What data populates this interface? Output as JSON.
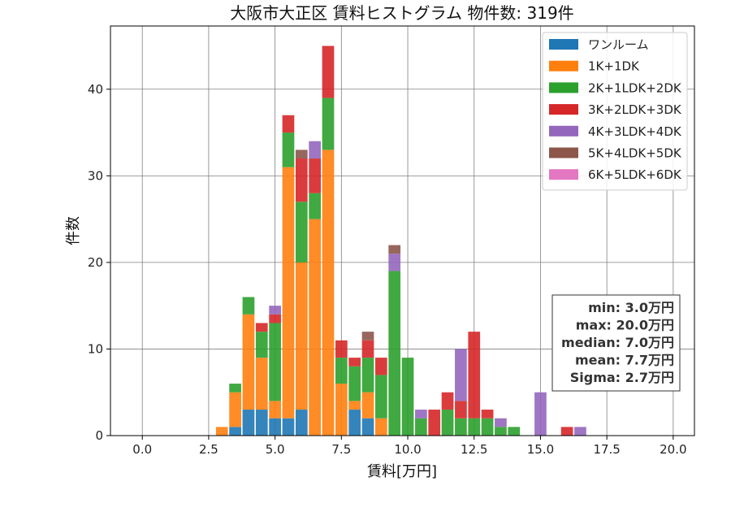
{
  "chart_data": {
    "type": "bar",
    "stacked": true,
    "title": "大阪市大正区 賃料ヒストグラム 物件数: 319件",
    "xlabel": "賃料[万円]",
    "ylabel": "件数",
    "xlim": [
      -1.2,
      20.8
    ],
    "ylim": [
      0,
      47.3
    ],
    "xticks": [
      "0.0",
      "2.5",
      "5.0",
      "7.5",
      "10.0",
      "12.5",
      "15.0",
      "17.5",
      "20.0"
    ],
    "yticks": [
      "0",
      "10",
      "20",
      "30",
      "40"
    ],
    "grid": true,
    "legend_position": "top-right",
    "bin_width": 0.5,
    "x": [
      3.0,
      3.5,
      4.0,
      4.5,
      5.0,
      5.5,
      6.0,
      6.5,
      7.0,
      7.5,
      8.0,
      8.5,
      9.0,
      9.5,
      10.0,
      10.5,
      11.0,
      11.5,
      12.0,
      12.5,
      13.0,
      13.5,
      14.0,
      14.5,
      15.0,
      15.5,
      16.0,
      16.5
    ],
    "series": [
      {
        "name": "ワンルーム",
        "color": "#1f77b4",
        "values": [
          0,
          1,
          3,
          3,
          2,
          2,
          3,
          0,
          0,
          0,
          3,
          2,
          0,
          0,
          0,
          0,
          0,
          0,
          0,
          0,
          0,
          0,
          0,
          0,
          0,
          0,
          0,
          0
        ]
      },
      {
        "name": "1K+1DK",
        "color": "#ff7f0e",
        "values": [
          1,
          4,
          11,
          6,
          2,
          29,
          17,
          25,
          33,
          6,
          1,
          3,
          2,
          0,
          0,
          0,
          0,
          0,
          0,
          0,
          0,
          0,
          0,
          0,
          0,
          0,
          0,
          0
        ]
      },
      {
        "name": "2K+1LDK+2DK",
        "color": "#2ca02c",
        "values": [
          0,
          1,
          2,
          3,
          9,
          4,
          7,
          3,
          6,
          3,
          4,
          4,
          5,
          19,
          9,
          2,
          0,
          3,
          2,
          2,
          2,
          1,
          1,
          0,
          0,
          0,
          0,
          0
        ]
      },
      {
        "name": "3K+2LDK+3DK",
        "color": "#d62728",
        "values": [
          0,
          0,
          0,
          1,
          1,
          2,
          5,
          4,
          6,
          2,
          1,
          2,
          2,
          0,
          0,
          0,
          3,
          2,
          2,
          10,
          1,
          0,
          0,
          0,
          0,
          0,
          1,
          0
        ]
      },
      {
        "name": "4K+3LDK+4DK",
        "color": "#9467bd",
        "values": [
          0,
          0,
          0,
          0,
          1,
          0,
          0,
          2,
          0,
          0,
          0,
          0,
          0,
          2,
          0,
          1,
          0,
          0,
          6,
          0,
          0,
          1,
          0,
          0,
          5,
          0,
          0,
          1
        ]
      },
      {
        "name": "5K+4LDK+5DK",
        "color": "#8c564b",
        "values": [
          0,
          0,
          0,
          0,
          0,
          0,
          1,
          0,
          0,
          0,
          0,
          1,
          0,
          1,
          0,
          0,
          0,
          0,
          0,
          0,
          0,
          0,
          0,
          0,
          0,
          0,
          0,
          0
        ]
      },
      {
        "name": "6K+5LDK+6DK",
        "color": "#e377c2",
        "values": [
          0,
          0,
          0,
          0,
          0,
          0,
          0,
          0,
          0,
          0,
          0,
          0,
          0,
          0,
          0,
          0,
          0,
          0,
          0,
          0,
          0,
          0,
          0,
          0,
          0,
          0,
          0,
          0
        ]
      }
    ],
    "stats": [
      "min: 3.0万円",
      "max: 20.0万円",
      "median: 7.0万円",
      "mean: 7.7万円",
      "Sigma: 2.7万円"
    ]
  }
}
